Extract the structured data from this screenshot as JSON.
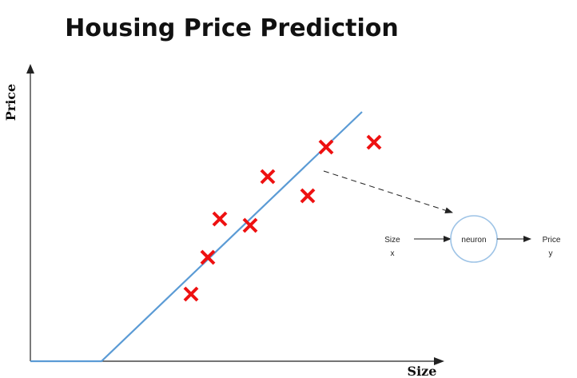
{
  "title": "Housing Price Prediction",
  "axes": {
    "x_label": "Size",
    "y_label": "Price"
  },
  "neuron": {
    "input_name": "Size",
    "input_symbol": "x",
    "node_label": "neuron",
    "output_name": "Price",
    "output_symbol": "y"
  },
  "chart_data": {
    "type": "scatter",
    "description_free": true,
    "points": [
      {
        "x": 201,
        "y": 84
      },
      {
        "x": 222,
        "y": 130
      },
      {
        "x": 237,
        "y": 178
      },
      {
        "x": 275,
        "y": 170
      },
      {
        "x": 297,
        "y": 231
      },
      {
        "x": 347,
        "y": 207
      },
      {
        "x": 370,
        "y": 268
      },
      {
        "x": 430,
        "y": 274
      }
    ],
    "fit_line": [
      {
        "x": 0,
        "y": 0
      },
      {
        "x": 89,
        "y": 0
      },
      {
        "x": 415,
        "y": 312
      }
    ],
    "xlim": [
      0,
      510
    ],
    "ylim": [
      0,
      365
    ]
  },
  "colors": {
    "marker": "#ee1111",
    "fit_line": "#5b9bd5",
    "axis": "#222222",
    "neuron_stroke": "#9dc3e6"
  },
  "icons": {
    "axis_arrow": "arrow-head-icon",
    "connector_arrow": "arrow-right-icon"
  }
}
